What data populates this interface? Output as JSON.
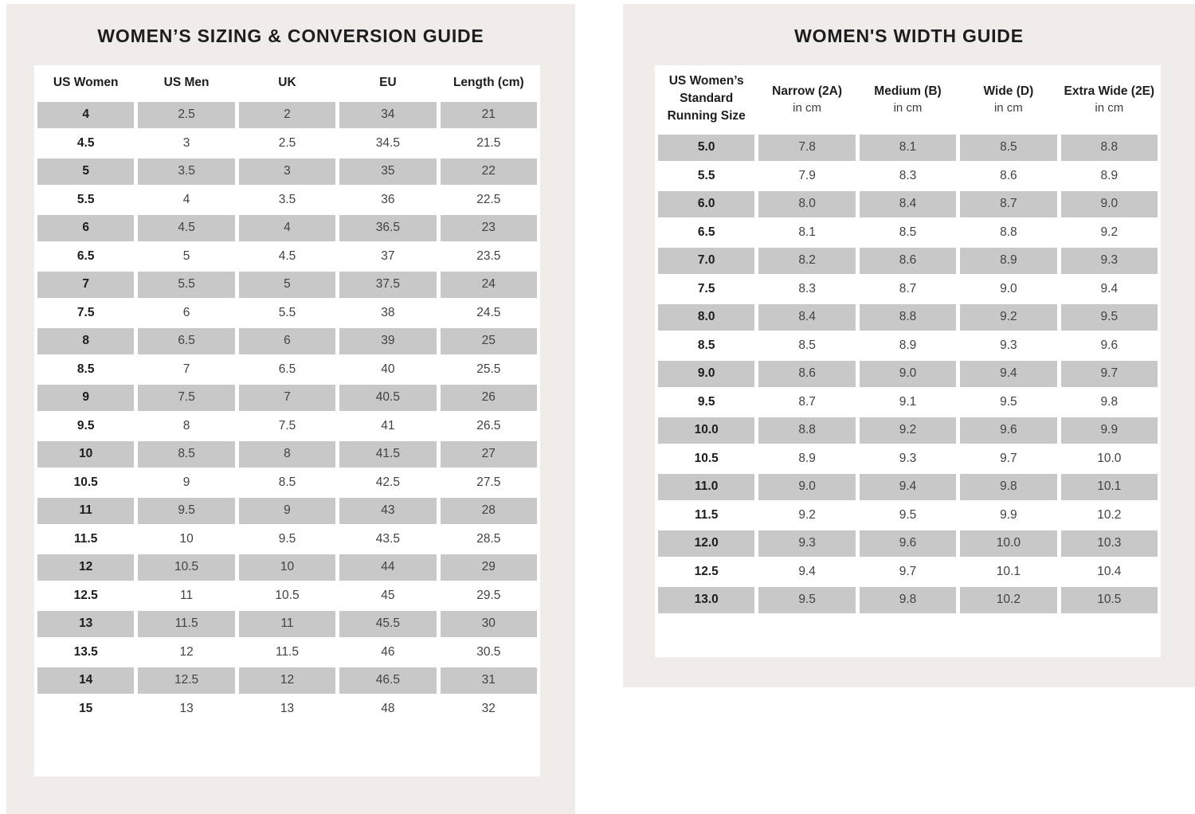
{
  "colors": {
    "panel_bg": "#efecea",
    "table_bg": "#ffffff",
    "shaded_cell": "#c9c8c8",
    "heading_text": "#1d1d1d",
    "cell_text": "#424242"
  },
  "left_panel": {
    "title": "WOMEN’S SIZING & CONVERSION GUIDE",
    "table": {
      "headers": [
        {
          "label": "US Women",
          "sub": ""
        },
        {
          "label": "US Men",
          "sub": ""
        },
        {
          "label": "UK",
          "sub": ""
        },
        {
          "label": "EU",
          "sub": ""
        },
        {
          "label": "Length (cm)",
          "sub": ""
        }
      ],
      "rows": [
        [
          "4",
          "2.5",
          "2",
          "34",
          "21"
        ],
        [
          "4.5",
          "3",
          "2.5",
          "34.5",
          "21.5"
        ],
        [
          "5",
          "3.5",
          "3",
          "35",
          "22"
        ],
        [
          "5.5",
          "4",
          "3.5",
          "36",
          "22.5"
        ],
        [
          "6",
          "4.5",
          "4",
          "36.5",
          "23"
        ],
        [
          "6.5",
          "5",
          "4.5",
          "37",
          "23.5"
        ],
        [
          "7",
          "5.5",
          "5",
          "37.5",
          "24"
        ],
        [
          "7.5",
          "6",
          "5.5",
          "38",
          "24.5"
        ],
        [
          "8",
          "6.5",
          "6",
          "39",
          "25"
        ],
        [
          "8.5",
          "7",
          "6.5",
          "40",
          "25.5"
        ],
        [
          "9",
          "7.5",
          "7",
          "40.5",
          "26"
        ],
        [
          "9.5",
          "8",
          "7.5",
          "41",
          "26.5"
        ],
        [
          "10",
          "8.5",
          "8",
          "41.5",
          "27"
        ],
        [
          "10.5",
          "9",
          "8.5",
          "42.5",
          "27.5"
        ],
        [
          "11",
          "9.5",
          "9",
          "43",
          "28"
        ],
        [
          "11.5",
          "10",
          "9.5",
          "43.5",
          "28.5"
        ],
        [
          "12",
          "10.5",
          "10",
          "44",
          "29"
        ],
        [
          "12.5",
          "11",
          "10.5",
          "45",
          "29.5"
        ],
        [
          "13",
          "11.5",
          "11",
          "45.5",
          "30"
        ],
        [
          "13.5",
          "12",
          "11.5",
          "46",
          "30.5"
        ],
        [
          "14",
          "12.5",
          "12",
          "46.5",
          "31"
        ],
        [
          "15",
          "13",
          "13",
          "48",
          "32"
        ]
      ]
    }
  },
  "right_panel": {
    "title": "WOMEN'S WIDTH GUIDE",
    "table": {
      "headers": [
        {
          "label": "US Women’s Standard Running Size",
          "sub": ""
        },
        {
          "label": "Narrow (2A)",
          "sub": "in cm"
        },
        {
          "label": "Medium (B)",
          "sub": "in cm"
        },
        {
          "label": "Wide (D)",
          "sub": "in cm"
        },
        {
          "label": "Extra Wide (2E)",
          "sub": "in cm"
        }
      ],
      "rows": [
        [
          "5.0",
          "7.8",
          "8.1",
          "8.5",
          "8.8"
        ],
        [
          "5.5",
          "7.9",
          "8.3",
          "8.6",
          "8.9"
        ],
        [
          "6.0",
          "8.0",
          "8.4",
          "8.7",
          "9.0"
        ],
        [
          "6.5",
          "8.1",
          "8.5",
          "8.8",
          "9.2"
        ],
        [
          "7.0",
          "8.2",
          "8.6",
          "8.9",
          "9.3"
        ],
        [
          "7.5",
          "8.3",
          "8.7",
          "9.0",
          "9.4"
        ],
        [
          "8.0",
          "8.4",
          "8.8",
          "9.2",
          "9.5"
        ],
        [
          "8.5",
          "8.5",
          "8.9",
          "9.3",
          "9.6"
        ],
        [
          "9.0",
          "8.6",
          "9.0",
          "9.4",
          "9.7"
        ],
        [
          "9.5",
          "8.7",
          "9.1",
          "9.5",
          "9.8"
        ],
        [
          "10.0",
          "8.8",
          "9.2",
          "9.6",
          "9.9"
        ],
        [
          "10.5",
          "8.9",
          "9.3",
          "9.7",
          "10.0"
        ],
        [
          "11.0",
          "9.0",
          "9.4",
          "9.8",
          "10.1"
        ],
        [
          "11.5",
          "9.2",
          "9.5",
          "9.9",
          "10.2"
        ],
        [
          "12.0",
          "9.3",
          "9.6",
          "10.0",
          "10.3"
        ],
        [
          "12.5",
          "9.4",
          "9.7",
          "10.1",
          "10.4"
        ],
        [
          "13.0",
          "9.5",
          "9.8",
          "10.2",
          "10.5"
        ]
      ]
    }
  }
}
